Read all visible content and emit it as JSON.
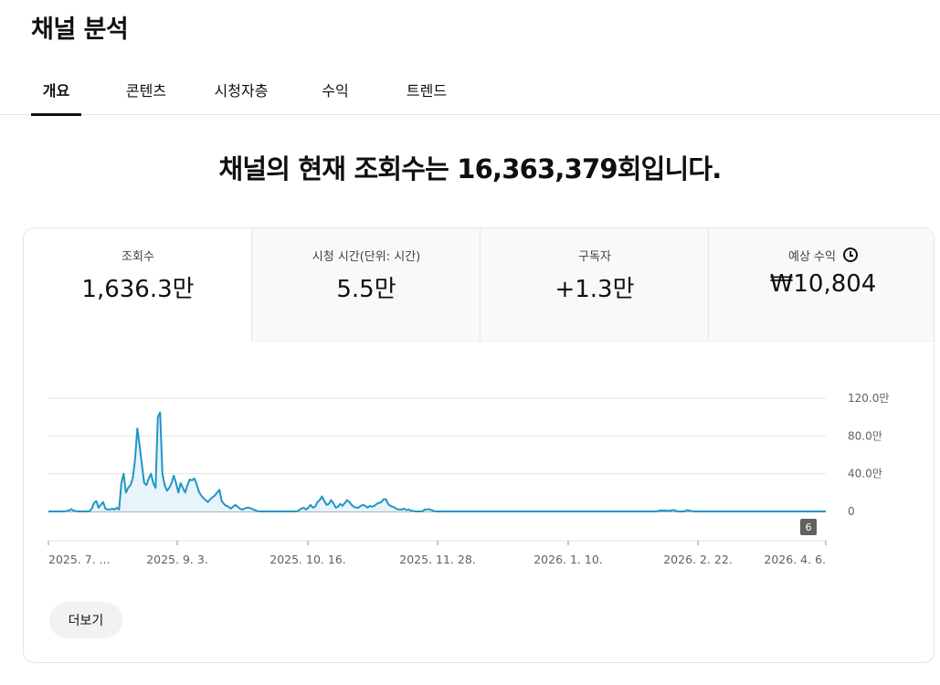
{
  "page": {
    "title": "채널 분석"
  },
  "tabs": [
    {
      "label": "개요",
      "active": true
    },
    {
      "label": "콘텐츠",
      "active": false
    },
    {
      "label": "시청자층",
      "active": false
    },
    {
      "label": "수익",
      "active": false
    },
    {
      "label": "트렌드",
      "active": false
    }
  ],
  "headline": "채널의 현재 조회수는 16,363,379회입니다.",
  "metrics": [
    {
      "label": "조회수",
      "value": "1,636.3만",
      "active": true
    },
    {
      "label": "시청 시간(단위: 시간)",
      "value": "5.5만",
      "active": false
    },
    {
      "label": "구독자",
      "value": "+1.3만",
      "active": false
    },
    {
      "label": "예상 수익",
      "value": "₩10,804",
      "active": false,
      "icon": "clock-icon"
    }
  ],
  "more_button": "더보기",
  "chart_data": {
    "type": "area",
    "series": [
      {
        "values": [
          0,
          0,
          0,
          0,
          0,
          0,
          0,
          0,
          0.5,
          1,
          2.5,
          1,
          0.3,
          0,
          0,
          0,
          0,
          0,
          0,
          3,
          9,
          11,
          4,
          7,
          10,
          3,
          2,
          2,
          3,
          2,
          4,
          2,
          30,
          40,
          20,
          25,
          28,
          35,
          55,
          88,
          70,
          50,
          30,
          28,
          35,
          40,
          30,
          25,
          100,
          105,
          40,
          28,
          22,
          25,
          30,
          38,
          30,
          20,
          30,
          25,
          20,
          28,
          34,
          33,
          35,
          29,
          21,
          17,
          14,
          12,
          10,
          13,
          15,
          17,
          20,
          23,
          11,
          8,
          6,
          5,
          3,
          5,
          7,
          5,
          3,
          2,
          3,
          4,
          4,
          3,
          2,
          1,
          0,
          0,
          0,
          0,
          0,
          0,
          0,
          0,
          0,
          0,
          0,
          0,
          0,
          0,
          0,
          0,
          0,
          0,
          1.5,
          3,
          4,
          2,
          4,
          7,
          4,
          5,
          10,
          12,
          16,
          11,
          7,
          8,
          12,
          9,
          4,
          5,
          8,
          6,
          9,
          12,
          10,
          7,
          5,
          4,
          4,
          6,
          7,
          6,
          4,
          6,
          5,
          6,
          8,
          9,
          10,
          13,
          13,
          8,
          6,
          5,
          4,
          2.5,
          2,
          2,
          3,
          1.5,
          2,
          1,
          0.5,
          0,
          0,
          0,
          0,
          2,
          2,
          2.5,
          1.5,
          0.5,
          0,
          0,
          0,
          0,
          0,
          0,
          0,
          0,
          0,
          0,
          0,
          0,
          0,
          0,
          0,
          0,
          0,
          0,
          0,
          0,
          0,
          0,
          0,
          0,
          0,
          0,
          0,
          0,
          0,
          0,
          0,
          0,
          0,
          0,
          0,
          0,
          0,
          0,
          0,
          0,
          0,
          0,
          0,
          0,
          0,
          0,
          0,
          0,
          0,
          0,
          0,
          0,
          0,
          0,
          0,
          0,
          0,
          0,
          0,
          0,
          0,
          0,
          0,
          0,
          0,
          0,
          0,
          0,
          0,
          0,
          0,
          0,
          0,
          0,
          0,
          0,
          0,
          0,
          0,
          0,
          0,
          0,
          0,
          0,
          0,
          0,
          0,
          0,
          0,
          0,
          0,
          0,
          0,
          0,
          0,
          0,
          0,
          0,
          1,
          1,
          1,
          1,
          0.5,
          1,
          1.5,
          1,
          0,
          0,
          0,
          0,
          1.5,
          1,
          0.5,
          0,
          0,
          0,
          0,
          0,
          0,
          0,
          0,
          0,
          0,
          0,
          0,
          0,
          0,
          0,
          0,
          0,
          0,
          0,
          0,
          0,
          0,
          0,
          0,
          0,
          0,
          0,
          0,
          0,
          0,
          0,
          0,
          0,
          0,
          0,
          0,
          0,
          0,
          0,
          0,
          0,
          0,
          0,
          0,
          0,
          0,
          0,
          0,
          0,
          0,
          0,
          0,
          0,
          0,
          0,
          0,
          0,
          0,
          0
        ]
      }
    ],
    "x_tick_labels": [
      "2025. 7. ...",
      "2025. 9. 3.",
      "2025. 10. 16.",
      "2025. 11. 28.",
      "2026. 1. 10.",
      "2026. 2. 22.",
      "2026. 4. 6."
    ],
    "y_ticks": [
      0,
      40,
      80,
      120
    ],
    "y_tick_labels": [
      "0",
      "40.0만",
      "80.0만",
      "120.0만"
    ],
    "ylim": [
      0,
      120
    ],
    "grid": true,
    "annotations": [
      {
        "label": "6"
      }
    ],
    "colors": {
      "line": "#2196c4",
      "fill": "#e8f4fb",
      "grid": "#e5e5e5",
      "axis": "#909090",
      "badge": "#606060"
    }
  }
}
